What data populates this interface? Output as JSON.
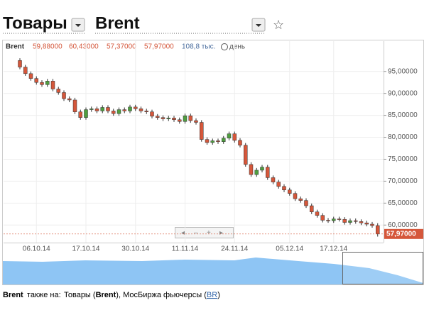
{
  "header": {
    "market": "Товары",
    "symbol": "Brent"
  },
  "quote": {
    "symbol": "Brent",
    "open": "59,88000",
    "high": "60,43000",
    "low": "57,37000",
    "close": "57,97000",
    "volume": "108,8 тыс.",
    "period": "день"
  },
  "footer": {
    "symbol": "Brent",
    "text": "также на:",
    "link1_pre": "Товары (",
    "link1": "Brent",
    "link1_post": "),",
    "link2_pre": "МосБиржа фьючерсы (",
    "link2": "BR",
    "link2_post": ")"
  },
  "chart_data": {
    "type": "candlestick",
    "up_color": "#4f9e3f",
    "down_color": "#d5573b",
    "categories": [
      null,
      null,
      null,
      "06.10.14",
      null,
      null,
      null,
      null,
      null,
      null,
      null,
      null,
      "17.10.14",
      null,
      null,
      null,
      null,
      null,
      null,
      null,
      null,
      "30.10.14",
      null,
      null,
      null,
      null,
      null,
      null,
      null,
      null,
      "11.11.14",
      null,
      null,
      null,
      null,
      null,
      null,
      null,
      null,
      "24.11.14",
      null,
      null,
      null,
      null,
      null,
      null,
      null,
      null,
      null,
      "05.12.14",
      null,
      null,
      null,
      null,
      null,
      null,
      null,
      "17.12.14",
      null,
      null,
      null,
      null,
      null,
      null,
      null,
      null
    ],
    "open": [
      97.5,
      96.0,
      94.5,
      93.4,
      92.5,
      92.0,
      92.8,
      91.0,
      90.2,
      88.8,
      88.5,
      85.8,
      84.5,
      86.3,
      86.5,
      86.0,
      86.8,
      86.0,
      85.4,
      86.3,
      86.0,
      86.9,
      86.5,
      86.0,
      85.8,
      84.8,
      84.5,
      84.2,
      84.4,
      84.0,
      83.6,
      84.9,
      83.8,
      83.4,
      79.5,
      78.8,
      79.2,
      79.0,
      79.8,
      80.8,
      79.3,
      78.2,
      73.8,
      71.5,
      72.5,
      73.2,
      70.8,
      69.8,
      68.8,
      68.0,
      67.2,
      66.0,
      65.6,
      64.4,
      63.0,
      62.2,
      61.1,
      61.0,
      61.4,
      61.3,
      60.6,
      61.0,
      60.8,
      60.5,
      60.2,
      59.88
    ],
    "high": [
      98.0,
      96.5,
      95.0,
      93.9,
      93.0,
      93.3,
      93.3,
      91.5,
      90.7,
      89.3,
      89.0,
      86.3,
      86.8,
      87.0,
      87.0,
      87.3,
      87.3,
      86.5,
      86.8,
      86.8,
      87.4,
      87.4,
      87.0,
      86.5,
      86.3,
      85.3,
      85.0,
      84.9,
      84.9,
      84.5,
      85.4,
      85.4,
      84.3,
      83.9,
      80.0,
      79.7,
      79.7,
      80.3,
      81.3,
      81.3,
      79.8,
      78.7,
      74.3,
      73.0,
      73.7,
      73.7,
      71.3,
      70.3,
      69.3,
      68.5,
      67.7,
      66.5,
      66.1,
      64.9,
      63.5,
      62.7,
      61.6,
      61.9,
      61.9,
      61.8,
      61.5,
      61.5,
      61.3,
      61.0,
      60.7,
      60.43
    ],
    "low": [
      95.5,
      94.0,
      92.9,
      92.0,
      91.5,
      91.5,
      90.5,
      89.7,
      88.3,
      88.0,
      85.3,
      84.0,
      84.0,
      85.8,
      85.5,
      85.5,
      85.5,
      84.9,
      84.9,
      85.5,
      85.5,
      86.0,
      85.5,
      85.3,
      84.3,
      84.0,
      83.7,
      83.7,
      83.5,
      83.1,
      83.1,
      83.3,
      82.9,
      79.0,
      78.3,
      78.3,
      78.5,
      78.5,
      79.3,
      78.8,
      77.7,
      73.3,
      71.0,
      71.0,
      72.0,
      70.3,
      69.3,
      68.3,
      67.5,
      66.7,
      65.5,
      65.1,
      63.9,
      62.5,
      61.7,
      60.6,
      60.5,
      60.5,
      60.8,
      60.1,
      60.1,
      60.3,
      60.0,
      59.7,
      59.4,
      57.37
    ],
    "close": [
      96.0,
      94.5,
      93.4,
      92.5,
      92.0,
      92.8,
      91.0,
      90.2,
      88.8,
      88.5,
      85.8,
      84.5,
      86.3,
      86.5,
      86.0,
      86.8,
      86.0,
      85.4,
      86.3,
      86.0,
      86.9,
      86.5,
      86.0,
      85.8,
      84.8,
      84.5,
      84.2,
      84.4,
      84.0,
      83.6,
      84.9,
      83.8,
      83.4,
      79.5,
      78.8,
      79.2,
      79.0,
      79.8,
      80.8,
      79.3,
      78.2,
      73.8,
      71.5,
      72.5,
      73.2,
      70.8,
      69.8,
      68.8,
      68.0,
      67.2,
      66.0,
      65.6,
      64.4,
      63.0,
      62.2,
      61.1,
      61.0,
      61.4,
      61.3,
      60.6,
      61.0,
      60.8,
      60.5,
      60.2,
      59.88,
      57.97
    ],
    "ylim": [
      56,
      99
    ],
    "yticks": [
      {
        "value": 60,
        "label": "60,00000"
      },
      {
        "value": 65,
        "label": "65,00000"
      },
      {
        "value": 70,
        "label": "70,00000"
      },
      {
        "value": 75,
        "label": "75,00000"
      },
      {
        "value": 80,
        "label": "80,00000"
      },
      {
        "value": 85,
        "label": "85,00000"
      },
      {
        "value": 90,
        "label": "90,00000"
      },
      {
        "value": 95,
        "label": "95,00000"
      }
    ],
    "grid": true
  }
}
